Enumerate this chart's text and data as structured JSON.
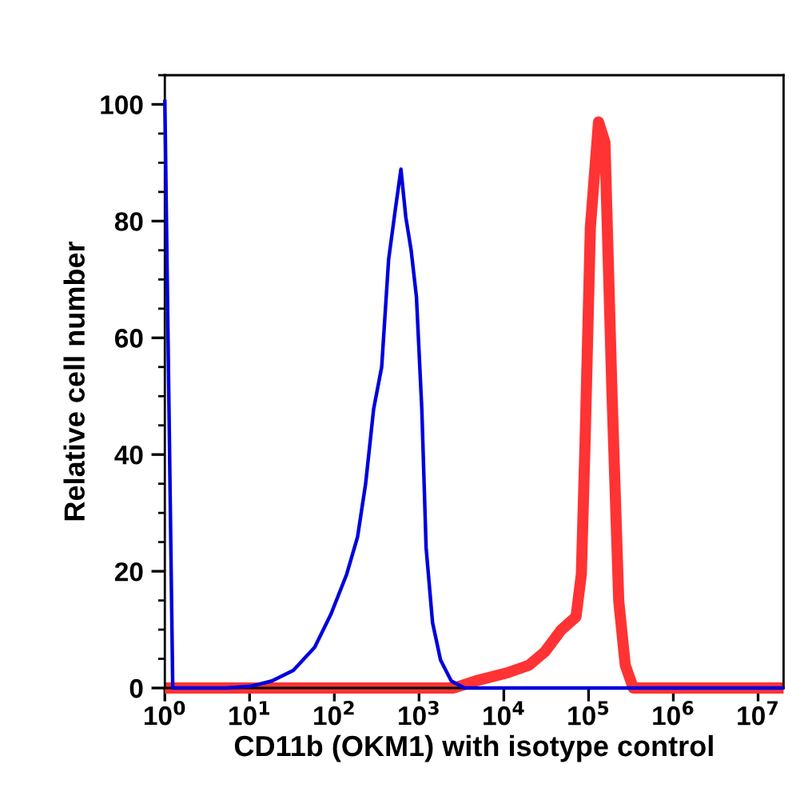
{
  "chart_data": {
    "type": "line",
    "xlabel": "CD11b (OKM1) with isotype control",
    "ylabel": "Relative cell number",
    "log": "x",
    "grid": false,
    "line_style": "solid",
    "marker": "none",
    "xlim": [
      1,
      20000000
    ],
    "xticks": [
      {
        "value": 1,
        "label": "10$^{0}$"
      },
      {
        "value": 10,
        "label": "10$^{1}$"
      },
      {
        "value": 100,
        "label": "10$^{2}$"
      },
      {
        "value": 1000,
        "label": "10$^{3}$"
      },
      {
        "value": 10000,
        "label": "10$^{4}$"
      },
      {
        "value": 100000,
        "label": "10$^{5}$"
      },
      {
        "value": 1000000,
        "label": "10$^{6}$"
      },
      {
        "value": 10000000,
        "label": "10$^{7}$"
      }
    ],
    "ylim": [
      0,
      105
    ],
    "yticks": [
      0,
      20,
      40,
      60,
      80,
      100
    ],
    "series": [
      {
        "color": "#ff3333",
        "x": [
          1,
          2570,
          4610,
          11000,
          19800,
          30500,
          47300,
          71100,
          82200,
          91000,
          105000,
          131000,
          156000,
          188000,
          227000,
          271000,
          337000,
          20000000
        ],
        "values": [
          0,
          0,
          1.2,
          2.6,
          3.9,
          6.2,
          9.9,
          12.2,
          19.5,
          42.3,
          78.9,
          97,
          93.5,
          51.5,
          14.9,
          3.9,
          0,
          0
        ]
      },
      {
        "color": "#0000dd",
        "x": [
          1,
          1.24,
          5.3,
          10.3,
          18.3,
          32.8,
          58.7,
          90.9,
          140,
          188,
          234,
          291,
          362,
          437,
          520,
          611,
          697,
          806,
          931,
          1077,
          1211,
          1442,
          1792,
          2399,
          3450,
          20000000
        ],
        "values": [
          100.8,
          0,
          0,
          0.3,
          1.2,
          3,
          7,
          12.6,
          19.5,
          25.9,
          35,
          47.8,
          55,
          73.4,
          81.6,
          88.9,
          80.7,
          75,
          67,
          47.8,
          24,
          11.2,
          4.8,
          1.2,
          0,
          0
        ]
      }
    ]
  }
}
